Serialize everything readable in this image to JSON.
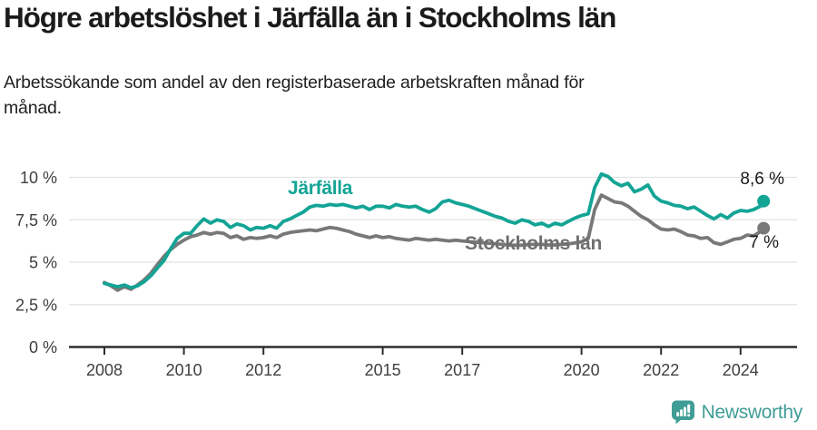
{
  "header": {
    "title": "Högre arbetslöshet i Järfälla än i Stockholms län",
    "subtitle_lines": [
      "Arbetssökande som andel av den registerbaserade arbetskraften månad för",
      "månad."
    ]
  },
  "footer": {
    "brand": "Newsworthy",
    "logo_icon": "newsworthy-speech-bubble-chart-icon",
    "brand_color": "#3F9D96"
  },
  "colors": {
    "accent_teal": "#13A495",
    "series_gray": "#787878",
    "gray_label": "#6F6F6F",
    "grid": "#E2E2E2",
    "axis": "#2E2E2E",
    "tick_text": "#3F3F3F"
  },
  "chart_data": {
    "type": "line",
    "unit": "percent of registered workforce, monthly",
    "grid": "horizontal",
    "ylim": [
      0,
      10
    ],
    "xlim": [
      2007.1,
      2025.4
    ],
    "legend_position": "inline-labels",
    "y_ticks": [
      {
        "value": 0,
        "label": "0 %"
      },
      {
        "value": 2.5,
        "label": "2,5 %"
      },
      {
        "value": 5,
        "label": "5 %"
      },
      {
        "value": 7.5,
        "label": "7,5 %"
      },
      {
        "value": 10,
        "label": "10 %"
      }
    ],
    "x_ticks": [
      {
        "value": 2008,
        "label": "2008"
      },
      {
        "value": 2010,
        "label": "2010"
      },
      {
        "value": 2012,
        "label": "2012"
      },
      {
        "value": 2015,
        "label": "2015"
      },
      {
        "value": 2017,
        "label": "2017"
      },
      {
        "value": 2020,
        "label": "2020"
      },
      {
        "value": 2022,
        "label": "2022"
      },
      {
        "value": 2024,
        "label": "2024"
      }
    ],
    "series": [
      {
        "name": "Järfälla",
        "color": "#13A495",
        "end_label": "8,6 %",
        "end_value": 8.6,
        "points": [
          [
            2008.0,
            3.75
          ],
          [
            2008.17,
            3.65
          ],
          [
            2008.33,
            3.55
          ],
          [
            2008.5,
            3.65
          ],
          [
            2008.67,
            3.5
          ],
          [
            2008.83,
            3.6
          ],
          [
            2009.0,
            3.85
          ],
          [
            2009.17,
            4.2
          ],
          [
            2009.33,
            4.65
          ],
          [
            2009.5,
            5.1
          ],
          [
            2009.67,
            5.8
          ],
          [
            2009.83,
            6.4
          ],
          [
            2010.0,
            6.7
          ],
          [
            2010.17,
            6.7
          ],
          [
            2010.33,
            7.15
          ],
          [
            2010.5,
            7.55
          ],
          [
            2010.67,
            7.3
          ],
          [
            2010.83,
            7.5
          ],
          [
            2011.0,
            7.4
          ],
          [
            2011.17,
            7.05
          ],
          [
            2011.33,
            7.25
          ],
          [
            2011.5,
            7.15
          ],
          [
            2011.67,
            6.9
          ],
          [
            2011.83,
            7.05
          ],
          [
            2012.0,
            7.0
          ],
          [
            2012.17,
            7.15
          ],
          [
            2012.33,
            7.0
          ],
          [
            2012.5,
            7.4
          ],
          [
            2012.67,
            7.55
          ],
          [
            2012.83,
            7.75
          ],
          [
            2013.0,
            7.95
          ],
          [
            2013.17,
            8.25
          ],
          [
            2013.33,
            8.35
          ],
          [
            2013.5,
            8.3
          ],
          [
            2013.67,
            8.4
          ],
          [
            2013.83,
            8.35
          ],
          [
            2014.0,
            8.4
          ],
          [
            2014.17,
            8.3
          ],
          [
            2014.33,
            8.2
          ],
          [
            2014.5,
            8.3
          ],
          [
            2014.67,
            8.1
          ],
          [
            2014.83,
            8.3
          ],
          [
            2015.0,
            8.3
          ],
          [
            2015.17,
            8.2
          ],
          [
            2015.33,
            8.4
          ],
          [
            2015.5,
            8.3
          ],
          [
            2015.67,
            8.25
          ],
          [
            2015.83,
            8.3
          ],
          [
            2016.0,
            8.1
          ],
          [
            2016.17,
            7.95
          ],
          [
            2016.33,
            8.15
          ],
          [
            2016.5,
            8.55
          ],
          [
            2016.67,
            8.65
          ],
          [
            2016.83,
            8.5
          ],
          [
            2017.0,
            8.4
          ],
          [
            2017.17,
            8.3
          ],
          [
            2017.33,
            8.15
          ],
          [
            2017.5,
            8.0
          ],
          [
            2017.67,
            7.85
          ],
          [
            2017.83,
            7.7
          ],
          [
            2018.0,
            7.6
          ],
          [
            2018.17,
            7.4
          ],
          [
            2018.33,
            7.3
          ],
          [
            2018.5,
            7.5
          ],
          [
            2018.67,
            7.4
          ],
          [
            2018.83,
            7.2
          ],
          [
            2019.0,
            7.3
          ],
          [
            2019.17,
            7.1
          ],
          [
            2019.33,
            7.3
          ],
          [
            2019.5,
            7.2
          ],
          [
            2019.67,
            7.4
          ],
          [
            2019.83,
            7.6
          ],
          [
            2020.0,
            7.75
          ],
          [
            2020.17,
            7.85
          ],
          [
            2020.33,
            9.4
          ],
          [
            2020.5,
            10.2
          ],
          [
            2020.67,
            10.05
          ],
          [
            2020.83,
            9.7
          ],
          [
            2021.0,
            9.5
          ],
          [
            2021.17,
            9.65
          ],
          [
            2021.33,
            9.15
          ],
          [
            2021.5,
            9.3
          ],
          [
            2021.67,
            9.55
          ],
          [
            2021.83,
            8.9
          ],
          [
            2022.0,
            8.6
          ],
          [
            2022.17,
            8.5
          ],
          [
            2022.33,
            8.35
          ],
          [
            2022.5,
            8.3
          ],
          [
            2022.67,
            8.15
          ],
          [
            2022.83,
            8.25
          ],
          [
            2023.0,
            8.0
          ],
          [
            2023.17,
            7.75
          ],
          [
            2023.33,
            7.55
          ],
          [
            2023.5,
            7.8
          ],
          [
            2023.67,
            7.6
          ],
          [
            2023.83,
            7.9
          ],
          [
            2024.0,
            8.05
          ],
          [
            2024.17,
            8.0
          ],
          [
            2024.33,
            8.1
          ],
          [
            2024.5,
            8.3
          ],
          [
            2024.58,
            8.6
          ]
        ]
      },
      {
        "name": "Stockholms län",
        "color": "#787878",
        "end_label": "7 %",
        "end_value": 7.0,
        "points": [
          [
            2008.0,
            3.8
          ],
          [
            2008.17,
            3.6
          ],
          [
            2008.33,
            3.35
          ],
          [
            2008.5,
            3.55
          ],
          [
            2008.67,
            3.4
          ],
          [
            2008.83,
            3.65
          ],
          [
            2009.0,
            3.95
          ],
          [
            2009.17,
            4.35
          ],
          [
            2009.33,
            4.85
          ],
          [
            2009.5,
            5.35
          ],
          [
            2009.67,
            5.75
          ],
          [
            2009.83,
            6.05
          ],
          [
            2010.0,
            6.3
          ],
          [
            2010.17,
            6.5
          ],
          [
            2010.33,
            6.6
          ],
          [
            2010.5,
            6.75
          ],
          [
            2010.67,
            6.65
          ],
          [
            2010.83,
            6.75
          ],
          [
            2011.0,
            6.7
          ],
          [
            2011.17,
            6.45
          ],
          [
            2011.33,
            6.55
          ],
          [
            2011.5,
            6.35
          ],
          [
            2011.67,
            6.45
          ],
          [
            2011.83,
            6.4
          ],
          [
            2012.0,
            6.45
          ],
          [
            2012.17,
            6.55
          ],
          [
            2012.33,
            6.45
          ],
          [
            2012.5,
            6.65
          ],
          [
            2012.67,
            6.75
          ],
          [
            2012.83,
            6.8
          ],
          [
            2013.0,
            6.85
          ],
          [
            2013.17,
            6.9
          ],
          [
            2013.33,
            6.85
          ],
          [
            2013.5,
            6.95
          ],
          [
            2013.67,
            7.05
          ],
          [
            2013.83,
            7.0
          ],
          [
            2014.0,
            6.9
          ],
          [
            2014.17,
            6.8
          ],
          [
            2014.33,
            6.65
          ],
          [
            2014.5,
            6.55
          ],
          [
            2014.67,
            6.45
          ],
          [
            2014.83,
            6.55
          ],
          [
            2015.0,
            6.45
          ],
          [
            2015.17,
            6.5
          ],
          [
            2015.33,
            6.4
          ],
          [
            2015.5,
            6.35
          ],
          [
            2015.67,
            6.3
          ],
          [
            2015.83,
            6.4
          ],
          [
            2016.0,
            6.35
          ],
          [
            2016.17,
            6.3
          ],
          [
            2016.33,
            6.35
          ],
          [
            2016.5,
            6.3
          ],
          [
            2016.67,
            6.25
          ],
          [
            2016.83,
            6.3
          ],
          [
            2017.0,
            6.25
          ],
          [
            2017.25,
            6.2
          ],
          [
            2017.5,
            6.15
          ],
          [
            2017.75,
            6.1
          ],
          [
            2018.0,
            6.05
          ],
          [
            2018.25,
            6.0
          ],
          [
            2018.5,
            6.0
          ],
          [
            2018.75,
            6.05
          ],
          [
            2019.0,
            6.05
          ],
          [
            2019.25,
            6.0
          ],
          [
            2019.5,
            6.05
          ],
          [
            2019.75,
            6.1
          ],
          [
            2020.0,
            6.2
          ],
          [
            2020.17,
            6.4
          ],
          [
            2020.33,
            8.1
          ],
          [
            2020.5,
            8.95
          ],
          [
            2020.67,
            8.75
          ],
          [
            2020.83,
            8.55
          ],
          [
            2021.0,
            8.5
          ],
          [
            2021.17,
            8.3
          ],
          [
            2021.33,
            8.0
          ],
          [
            2021.5,
            7.7
          ],
          [
            2021.67,
            7.5
          ],
          [
            2021.83,
            7.2
          ],
          [
            2022.0,
            6.95
          ],
          [
            2022.17,
            6.9
          ],
          [
            2022.33,
            6.95
          ],
          [
            2022.5,
            6.8
          ],
          [
            2022.67,
            6.6
          ],
          [
            2022.83,
            6.55
          ],
          [
            2023.0,
            6.4
          ],
          [
            2023.17,
            6.45
          ],
          [
            2023.33,
            6.15
          ],
          [
            2023.5,
            6.05
          ],
          [
            2023.67,
            6.2
          ],
          [
            2023.83,
            6.35
          ],
          [
            2024.0,
            6.4
          ],
          [
            2024.17,
            6.6
          ],
          [
            2024.33,
            6.55
          ],
          [
            2024.5,
            6.8
          ],
          [
            2024.58,
            7.0
          ]
        ]
      }
    ]
  }
}
